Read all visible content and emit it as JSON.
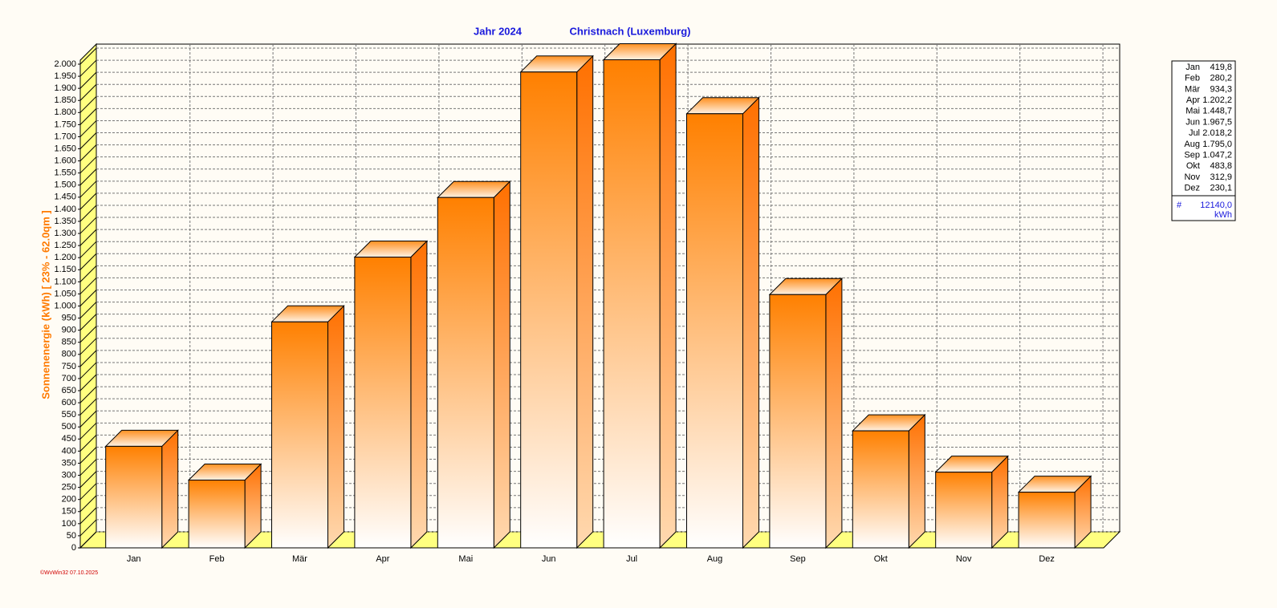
{
  "chart_data": {
    "type": "bar3d",
    "title": "Jahr  2024",
    "subtitle": "Christnach (Luxemburg)",
    "y_label": "Sonnenenergie  (kWh)    [ 23% - 62.0qm ]",
    "footer": "©WvWin32  07.10.2025",
    "categories": [
      "Jan",
      "Feb",
      "Mär",
      "Apr",
      "Mai",
      "Jun",
      "Jul",
      "Aug",
      "Sep",
      "Okt",
      "Nov",
      "Dez"
    ],
    "values": [
      419.8,
      280.2,
      934.3,
      1202.2,
      1448.7,
      1967.5,
      2018.2,
      1795.0,
      1047.2,
      483.8,
      312.9,
      230.1
    ],
    "value_labels": [
      "419,8",
      "280,2",
      "934,3",
      "1.202,2",
      "1.448,7",
      "1.967,5",
      "2.018,2",
      "1.795,0",
      "1.047,2",
      "483,8",
      "312,9",
      "230,1"
    ],
    "color": "#ff8000",
    "ylim": [
      0,
      2000
    ],
    "yticks": [
      0,
      50,
      100,
      150,
      200,
      250,
      300,
      350,
      400,
      450,
      500,
      550,
      600,
      650,
      700,
      750,
      800,
      850,
      900,
      950,
      {
        "value": 1000,
        "label": "1.000"
      },
      {
        "value": 1050,
        "label": "1.050"
      },
      {
        "value": 1100,
        "label": "1.100"
      },
      {
        "value": 1150,
        "label": "1.150"
      },
      {
        "value": 1200,
        "label": "1.200"
      },
      {
        "value": 1250,
        "label": "1.250"
      },
      {
        "value": 1300,
        "label": "1.300"
      },
      {
        "value": 1350,
        "label": "1.350"
      },
      {
        "value": 1400,
        "label": "1.400"
      },
      {
        "value": 1450,
        "label": "1.450"
      },
      {
        "value": 1500,
        "label": "1.500"
      },
      {
        "value": 1550,
        "label": "1.550"
      },
      {
        "value": 1600,
        "label": "1.600"
      },
      {
        "value": 1650,
        "label": "1.650"
      },
      {
        "value": 1700,
        "label": "1.700"
      },
      {
        "value": 1750,
        "label": "1.750"
      },
      {
        "value": 1800,
        "label": "1.800"
      },
      {
        "value": 1850,
        "label": "1.850"
      },
      {
        "value": 1900,
        "label": "1.900"
      },
      {
        "value": 1950,
        "label": "1.950"
      },
      {
        "value": 2000,
        "label": "2.000"
      }
    ],
    "grid": true,
    "total_marker": "#",
    "total": "12140,0",
    "unit": "kWh"
  }
}
